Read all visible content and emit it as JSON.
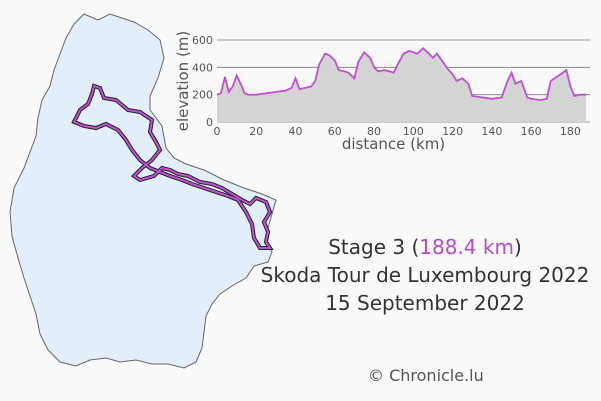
{
  "caption": {
    "stage_prefix": "Stage 3 (",
    "distance": "188.4 km",
    "stage_suffix": ")",
    "race": "Skoda Tour de Luxembourg 2022",
    "date": "15 September 2022"
  },
  "credit": {
    "symbol": "©",
    "text": "Chronicle.lu"
  },
  "colors": {
    "route": "#c050d0",
    "fill": "#d4d4d4",
    "land": "#e2eefa",
    "border": "#666666"
  },
  "chart_data": {
    "type": "area",
    "xlabel": "distance (km)",
    "ylabel": "elevation (m)",
    "xlim": [
      0,
      190
    ],
    "ylim": [
      0,
      600
    ],
    "xticks": [
      0,
      20,
      40,
      60,
      80,
      100,
      120,
      140,
      160,
      180
    ],
    "yticks": [
      0,
      200,
      400,
      600
    ],
    "grid": true,
    "series": [
      {
        "x": [
          0,
          2,
          4,
          6,
          8,
          10,
          12,
          14,
          16,
          18,
          20,
          25,
          30,
          35,
          38,
          40,
          42,
          45,
          48,
          50,
          52,
          55,
          57,
          60,
          62,
          65,
          67,
          70,
          72,
          75,
          78,
          80,
          82,
          85,
          88,
          90,
          92,
          95,
          98,
          100,
          102,
          105,
          108,
          110,
          112,
          115,
          118,
          120,
          122,
          125,
          128,
          130,
          135,
          140,
          145,
          148,
          150,
          152,
          155,
          158,
          160,
          165,
          168,
          170,
          172,
          175,
          178,
          180,
          182,
          185,
          188
        ],
        "y": [
          200,
          210,
          330,
          220,
          260,
          340,
          280,
          210,
          200,
          200,
          200,
          210,
          220,
          230,
          250,
          320,
          240,
          250,
          260,
          300,
          420,
          500,
          490,
          450,
          380,
          370,
          360,
          320,
          440,
          510,
          470,
          400,
          370,
          380,
          370,
          360,
          420,
          500,
          520,
          510,
          500,
          540,
          500,
          470,
          500,
          440,
          380,
          350,
          300,
          320,
          280,
          190,
          180,
          170,
          180,
          300,
          360,
          280,
          300,
          180,
          170,
          160,
          170,
          300,
          320,
          350,
          380,
          260,
          190,
          200,
          200
        ]
      }
    ]
  }
}
